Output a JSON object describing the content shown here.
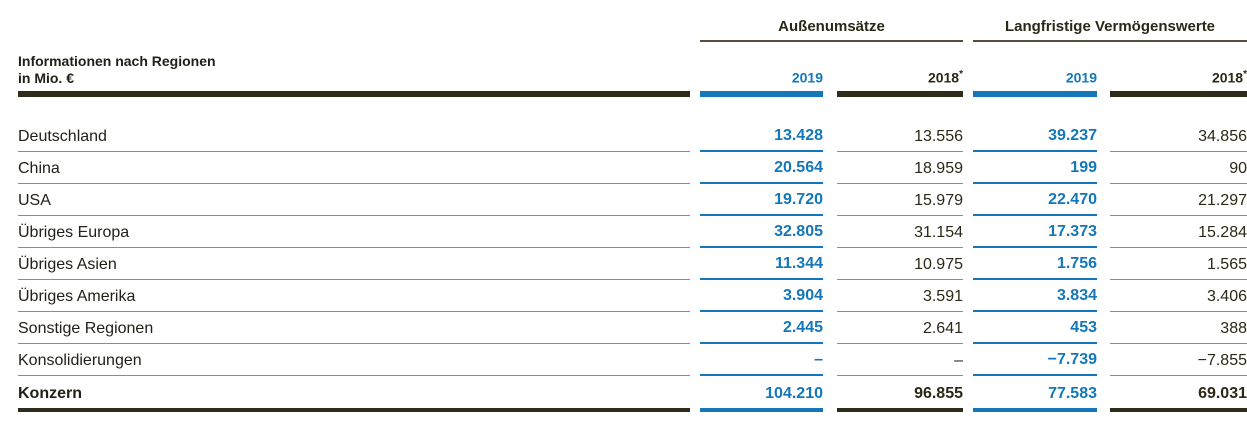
{
  "colors": {
    "accent_blue": "#1377b9",
    "dark_rule": "#2f2c1b",
    "gray_rule": "#8b8b8b",
    "background": "#ffffff"
  },
  "table": {
    "title_line1": "Informationen nach Regionen",
    "title_line2": "in Mio. €",
    "groups": [
      {
        "label": "Außenumsätze"
      },
      {
        "label": "Langfristige Vermögenswerte"
      }
    ],
    "year_headers": [
      {
        "year": "2019",
        "suffix": ""
      },
      {
        "year": "2018",
        "suffix": "*"
      },
      {
        "year": "2019",
        "suffix": ""
      },
      {
        "year": "2018",
        "suffix": "*"
      }
    ],
    "rows": [
      {
        "label": "Deutschland",
        "values": [
          "13.428",
          "13.556",
          "39.237",
          "34.856"
        ]
      },
      {
        "label": "China",
        "values": [
          "20.564",
          "18.959",
          "199",
          "90"
        ]
      },
      {
        "label": "USA",
        "values": [
          "19.720",
          "15.979",
          "22.470",
          "21.297"
        ]
      },
      {
        "label": "Übriges Europa",
        "values": [
          "32.805",
          "31.154",
          "17.373",
          "15.284"
        ]
      },
      {
        "label": "Übriges Asien",
        "values": [
          "11.344",
          "10.975",
          "1.756",
          "1.565"
        ]
      },
      {
        "label": "Übriges Amerika",
        "values": [
          "3.904",
          "3.591",
          "3.834",
          "3.406"
        ]
      },
      {
        "label": "Sonstige Regionen",
        "values": [
          "2.445",
          "2.641",
          "453",
          "388"
        ]
      },
      {
        "label": "Konsolidierungen",
        "values": [
          "–",
          "–",
          "−7.739",
          "−7.855"
        ]
      }
    ],
    "total_row": {
      "label": "Konzern",
      "values": [
        "104.210",
        "96.855",
        "77.583",
        "69.031"
      ]
    }
  }
}
